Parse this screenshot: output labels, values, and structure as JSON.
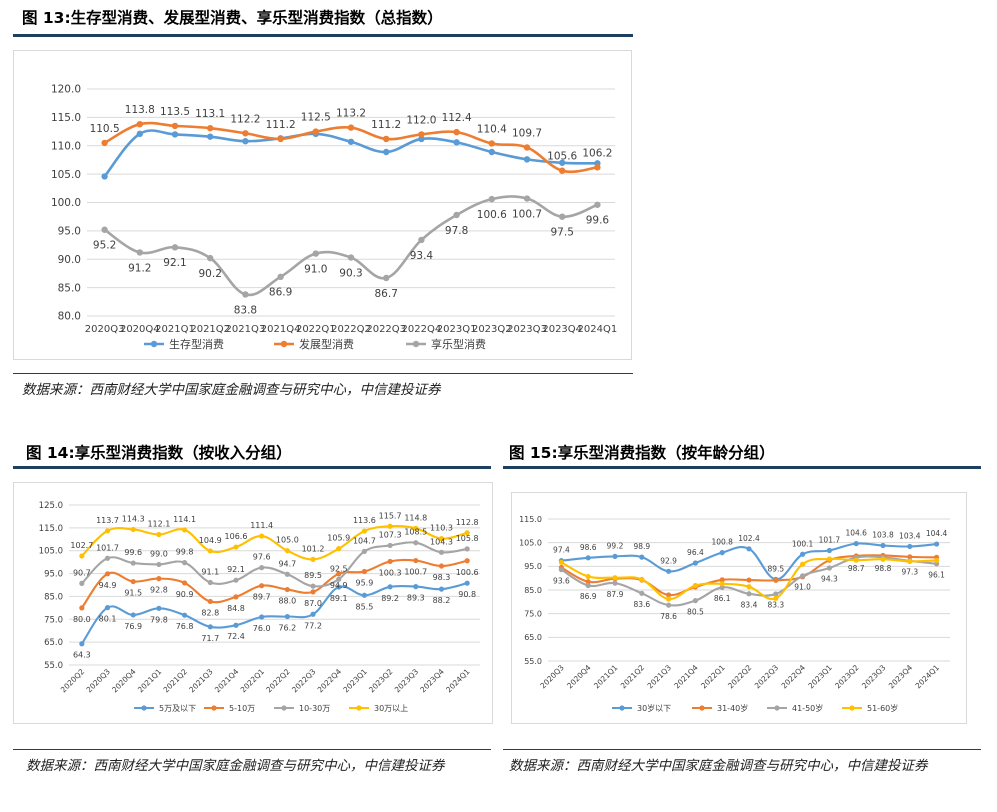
{
  "fig13": {
    "title": "图 13:生存型消费、发展型消费、享乐型消费指数（总指数）",
    "source": "数据来源：西南财经大学中国家庭金融调查与研究中心，中信建投证券"
  },
  "fig14": {
    "title": "图 14:享乐型消费指数（按收入分组）",
    "source": "数据来源：西南财经大学中国家庭金融调查与研究中心，中信建投证券"
  },
  "fig15": {
    "title": "图 15:享乐型消费指数（按年龄分组）",
    "source": "数据来源：西南财经大学中国家庭金融调查与研究中心，中信建投证券"
  },
  "chart_data": [
    {
      "id": "c13",
      "type": "line",
      "title": "生存型消费、发展型消费、享乐型消费指数（总指数）",
      "categories": [
        "2020Q3",
        "2020Q4",
        "2021Q1",
        "2021Q2",
        "2021Q3",
        "2021Q4",
        "2022Q1",
        "2022Q2",
        "2022Q3",
        "2022Q4",
        "2023Q1",
        "2023Q2",
        "2023Q3",
        "2023Q4",
        "2024Q1"
      ],
      "ylim": [
        80,
        120
      ],
      "yticks": [
        80,
        85,
        90,
        95,
        100,
        105,
        110,
        115,
        120
      ],
      "tick_decimals": 1,
      "grid": true,
      "legend": "bottom",
      "series": [
        {
          "name": "生存型消费",
          "color": "#5b9bd5",
          "values": [
            104.6,
            112.1,
            112.0,
            111.6,
            110.8,
            111.3,
            112.1,
            110.7,
            108.9,
            111.2,
            110.6,
            108.9,
            107.6,
            107.0,
            106.9
          ],
          "labels": [
            null,
            null,
            null,
            null,
            null,
            null,
            null,
            null,
            null,
            null,
            null,
            null,
            null,
            null,
            null
          ],
          "label_pos": "above"
        },
        {
          "name": "发展型消费",
          "color": "#ed7d31",
          "values": [
            110.5,
            113.8,
            113.5,
            113.1,
            112.2,
            111.2,
            112.5,
            113.2,
            111.2,
            112.0,
            112.4,
            110.4,
            109.7,
            105.6,
            106.2
          ],
          "labels": [
            "110.5",
            "113.8",
            "113.5",
            "113.1",
            "112.2",
            "111.2",
            "112.5",
            "113.2",
            "111.2",
            "112.0",
            "112.4",
            "110.4",
            "109.7",
            "105.6",
            "106.2"
          ],
          "label_pos": "above"
        },
        {
          "name": "享乐型消费",
          "color": "#a5a5a5",
          "values": [
            95.2,
            91.2,
            92.1,
            90.2,
            83.8,
            86.9,
            91.0,
            90.3,
            86.7,
            93.4,
            97.8,
            100.6,
            100.7,
            97.5,
            99.6
          ],
          "labels": [
            "95.2",
            "91.2",
            "92.1",
            "90.2",
            "83.8",
            "86.9",
            "91.0",
            "90.3",
            "86.7",
            "93.4",
            "97.8",
            "100.6",
            "100.7",
            "97.5",
            "99.6"
          ],
          "label_pos": "below"
        }
      ]
    },
    {
      "id": "c14",
      "type": "line",
      "title": "享乐型消费指数（按收入分组）",
      "categories": [
        "2020Q2",
        "2020Q3",
        "2020Q4",
        "2021Q1",
        "2021Q2",
        "2021Q3",
        "2021Q4",
        "2022Q1",
        "2022Q2",
        "2022Q3",
        "2022Q4",
        "2023Q1",
        "2023Q2",
        "2023Q3",
        "2023Q4",
        "2024Q1"
      ],
      "ylim": [
        55,
        125
      ],
      "yticks": [
        55,
        65,
        75,
        85,
        95,
        105,
        115,
        125
      ],
      "tick_decimals": 1,
      "grid": true,
      "legend": "bottom",
      "series": [
        {
          "name": "5万及以下",
          "color": "#5b9bd5",
          "values": [
            64.3,
            80.1,
            76.9,
            79.8,
            76.8,
            71.7,
            72.4,
            76.0,
            76.2,
            77.2,
            89.1,
            85.5,
            89.2,
            89.3,
            88.2,
            90.8
          ],
          "labels": [
            "64.3",
            "80.1",
            "76.9",
            "79.8",
            "76.8",
            "71.7",
            "72.4",
            "76.0",
            "76.2",
            "77.2",
            "89.1",
            "85.5",
            "89.2",
            "89.3",
            "88.2",
            "90.8"
          ],
          "label_pos": "below"
        },
        {
          "name": "5-10万",
          "color": "#ed7d31",
          "values": [
            80.0,
            94.9,
            91.5,
            92.8,
            90.9,
            82.8,
            84.8,
            89.7,
            88.0,
            87.0,
            94.9,
            95.9,
            100.3,
            100.7,
            98.3,
            100.6
          ],
          "labels": [
            "80.0",
            "94.9",
            "91.5",
            "92.8",
            "90.9",
            "82.8",
            "84.8",
            "89.7",
            "88.0",
            "87.0",
            "94.9",
            "95.9",
            "100.3",
            "100.7",
            "98.3",
            "100.6"
          ],
          "label_pos": "below"
        },
        {
          "name": "10-30万",
          "color": "#a5a5a5",
          "values": [
            90.7,
            101.7,
            99.6,
            99.0,
            99.8,
            91.1,
            92.1,
            97.6,
            94.7,
            89.5,
            92.5,
            104.7,
            107.3,
            108.5,
            104.3,
            105.8
          ],
          "labels": [
            "90.7",
            "101.7",
            "99.6",
            "99.0",
            "99.8",
            "91.1",
            "92.1",
            "97.6",
            "94.7",
            "89.5",
            "92.5",
            "104.7",
            "107.3",
            "108.5",
            "104.3",
            "105.8"
          ],
          "label_pos": "above"
        },
        {
          "name": "30万以上",
          "color": "#ffc000",
          "values": [
            102.7,
            113.7,
            114.3,
            112.1,
            114.1,
            104.9,
            106.6,
            111.4,
            105.0,
            101.2,
            105.9,
            113.6,
            115.7,
            114.8,
            110.3,
            112.8
          ],
          "labels": [
            "102.7",
            "113.7",
            "114.3",
            "112.1",
            "114.1",
            "104.9",
            "106.6",
            "111.4",
            "105.0",
            "101.2",
            "105.9",
            "113.6",
            "115.7",
            "114.8",
            "110.3",
            "112.8"
          ],
          "label_pos": "above"
        }
      ]
    },
    {
      "id": "c15",
      "type": "line",
      "title": "享乐型消费指数（按年龄分组）",
      "categories": [
        "2020Q3",
        "2020Q4",
        "2021Q1",
        "2021Q2",
        "2021Q3",
        "2021Q4",
        "2022Q1",
        "2022Q2",
        "2022Q3",
        "2022Q4",
        "2023Q1",
        "2023Q2",
        "2023Q3",
        "2023Q4",
        "2024Q1"
      ],
      "ylim": [
        55,
        115
      ],
      "yticks": [
        55,
        65,
        75,
        85,
        95,
        105,
        115
      ],
      "tick_decimals": 1,
      "grid": true,
      "legend": "bottom",
      "series": [
        {
          "name": "30岁以下",
          "color": "#5b9bd5",
          "values": [
            97.4,
            98.6,
            99.2,
            98.9,
            92.9,
            96.4,
            100.8,
            102.4,
            89.5,
            100.1,
            101.7,
            104.6,
            103.8,
            103.4,
            104.4
          ],
          "labels": [
            "97.4",
            "98.6",
            "99.2",
            "98.9",
            "92.9",
            "96.4",
            "100.8",
            "102.4",
            "89.5",
            "100.1",
            "101.7",
            "104.6",
            "103.8",
            "103.4",
            "104.4"
          ],
          "label_pos": "above"
        },
        {
          "name": "31-40岁",
          "color": "#ed7d31",
          "values": [
            94.5,
            88.5,
            89.8,
            89.2,
            82.9,
            86.3,
            89.3,
            89.2,
            89.1,
            90.6,
            97.6,
            99.4,
            99.6,
            99.0,
            98.8
          ],
          "labels": [
            null,
            null,
            null,
            null,
            null,
            null,
            null,
            null,
            null,
            null,
            null,
            null,
            null,
            null,
            null
          ],
          "label_pos": "below"
        },
        {
          "name": "41-50岁",
          "color": "#a5a5a5",
          "values": [
            93.6,
            86.9,
            87.9,
            83.6,
            78.6,
            80.5,
            86.1,
            83.4,
            83.3,
            91.0,
            94.3,
            98.7,
            98.8,
            97.3,
            96.1
          ],
          "labels": [
            "93.6",
            "86.9",
            "87.9",
            "83.6",
            "78.6",
            "80.5",
            "86.1",
            "83.4",
            "83.3",
            "91.0",
            "94.3",
            "98.7",
            "98.8",
            "97.3",
            "96.1"
          ],
          "label_pos": "below"
        },
        {
          "name": "51-60岁",
          "color": "#ffc000",
          "values": [
            96.7,
            90.7,
            90.2,
            89.5,
            81.2,
            86.9,
            87.6,
            86.4,
            81.5,
            95.9,
            98.1,
            97.6,
            98.0,
            97.1,
            97.5
          ],
          "labels": [
            null,
            null,
            null,
            null,
            null,
            null,
            null,
            null,
            null,
            null,
            null,
            null,
            null,
            null,
            null
          ],
          "label_pos": "below"
        }
      ]
    }
  ]
}
